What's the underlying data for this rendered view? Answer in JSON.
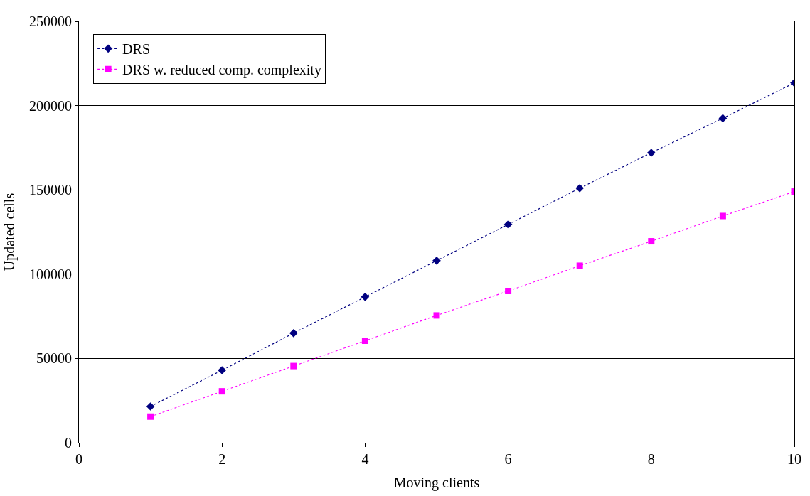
{
  "chart_data": {
    "type": "line",
    "xlabel": "Moving clients",
    "ylabel": "Updated cells",
    "x": [
      1,
      2,
      3,
      4,
      5,
      6,
      7,
      8,
      9,
      10
    ],
    "series": [
      {
        "name": "DRS",
        "color": "#000080",
        "marker": "diamond",
        "values": [
          21500,
          43000,
          65000,
          86500,
          108000,
          129500,
          151000,
          172000,
          192500,
          213500
        ]
      },
      {
        "name": "DRS w. reduced comp. complexity",
        "color": "#ff00ff",
        "marker": "square",
        "values": [
          15500,
          30500,
          45500,
          60500,
          75500,
          90000,
          105000,
          119500,
          134500,
          149000
        ]
      }
    ],
    "xlim": [
      0,
      10
    ],
    "xticks": [
      0,
      2,
      4,
      6,
      8,
      10
    ],
    "ylim": [
      0,
      250000
    ],
    "yticks": [
      0,
      50000,
      100000,
      150000,
      200000,
      250000
    ],
    "grid": "y",
    "legend": "top left",
    "line_style": "dotted"
  }
}
